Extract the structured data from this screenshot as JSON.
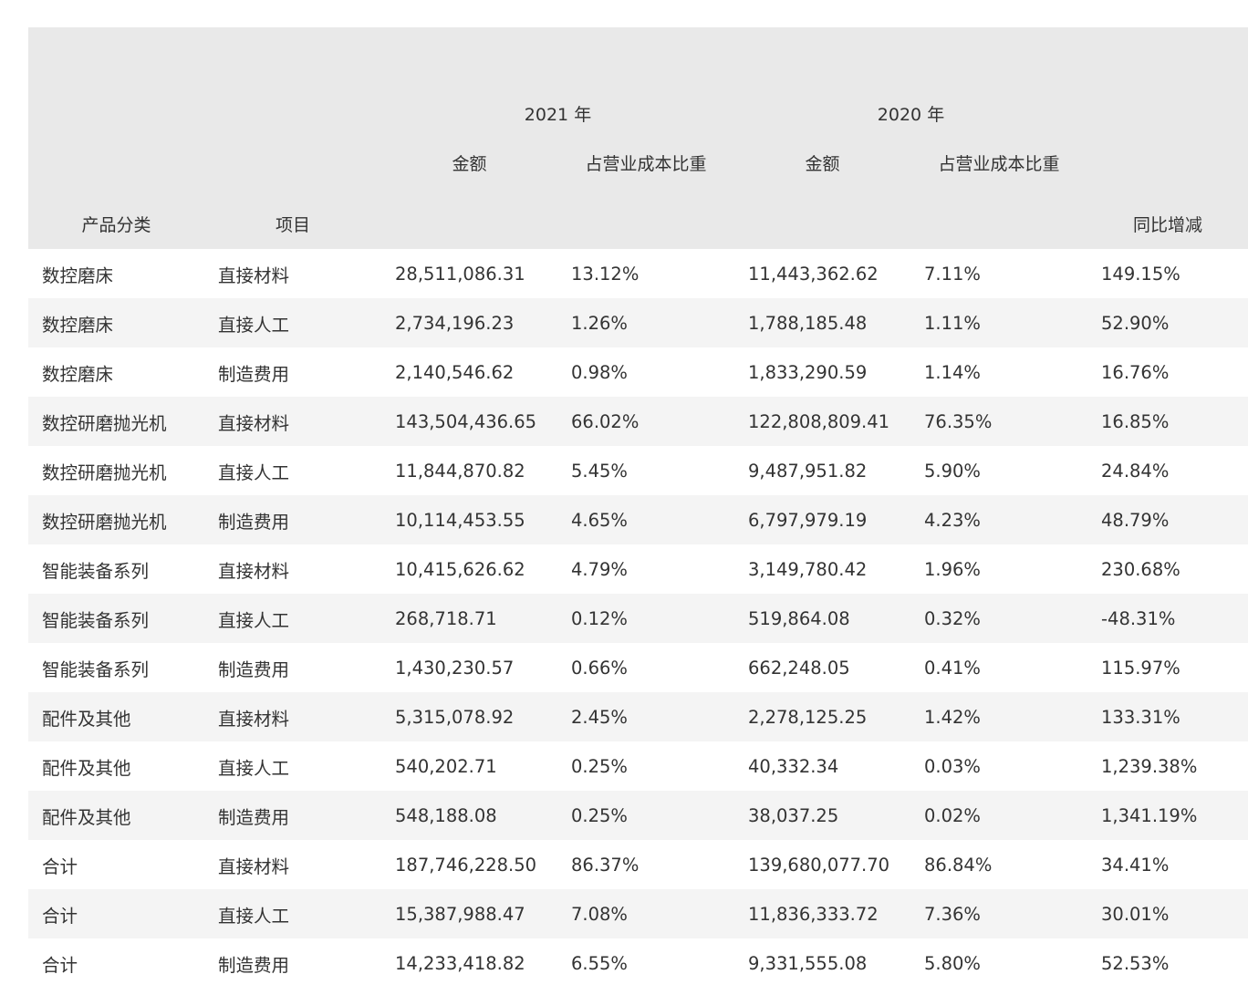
{
  "table": {
    "headers": {
      "category": "产品分类",
      "item": "项目",
      "year_2021": "2021 年",
      "year_2020": "2020 年",
      "amount_2021": "金额",
      "ratio_2021": "占营业成本比重",
      "amount_2020": "金额",
      "ratio_2020": "占营业成本比重",
      "yoy": "同比增减"
    },
    "rows": [
      [
        "数控磨床",
        "直接材料",
        "28,511,086.31",
        "13.12%",
        "11,443,362.62",
        "7.11%",
        "149.15%"
      ],
      [
        "数控磨床",
        "直接人工",
        "2,734,196.23",
        "1.26%",
        "1,788,185.48",
        "1.11%",
        "52.90%"
      ],
      [
        "数控磨床",
        "制造费用",
        "2,140,546.62",
        "0.98%",
        "1,833,290.59",
        "1.14%",
        "16.76%"
      ],
      [
        "数控研磨抛光机",
        "直接材料",
        "143,504,436.65",
        "66.02%",
        "122,808,809.41",
        "76.35%",
        "16.85%"
      ],
      [
        "数控研磨抛光机",
        "直接人工",
        "11,844,870.82",
        "5.45%",
        "9,487,951.82",
        "5.90%",
        "24.84%"
      ],
      [
        "数控研磨抛光机",
        "制造费用",
        "10,114,453.55",
        "4.65%",
        "6,797,979.19",
        "4.23%",
        "48.79%"
      ],
      [
        "智能装备系列",
        "直接材料",
        "10,415,626.62",
        "4.79%",
        "3,149,780.42",
        "1.96%",
        "230.68%"
      ],
      [
        "智能装备系列",
        "直接人工",
        "268,718.71",
        "0.12%",
        "519,864.08",
        "0.32%",
        "-48.31%"
      ],
      [
        "智能装备系列",
        "制造费用",
        "1,430,230.57",
        "0.66%",
        "662,248.05",
        "0.41%",
        "115.97%"
      ],
      [
        "配件及其他",
        "直接材料",
        "5,315,078.92",
        "2.45%",
        "2,278,125.25",
        "1.42%",
        "133.31%"
      ],
      [
        "配件及其他",
        "直接人工",
        "540,202.71",
        "0.25%",
        "40,332.34",
        "0.03%",
        "1,239.38%"
      ],
      [
        "配件及其他",
        "制造费用",
        "548,188.08",
        "0.25%",
        "38,037.25",
        "0.02%",
        "1,341.19%"
      ],
      [
        "合计",
        "直接材料",
        "187,746,228.50",
        "86.37%",
        "139,680,077.70",
        "86.84%",
        "34.41%"
      ],
      [
        "合计",
        "直接人工",
        "15,387,988.47",
        "7.08%",
        "11,836,333.72",
        "7.36%",
        "30.01%"
      ],
      [
        "合计",
        "制造费用",
        "14,233,418.82",
        "6.55%",
        "9,331,555.08",
        "5.80%",
        "52.53%"
      ]
    ]
  }
}
